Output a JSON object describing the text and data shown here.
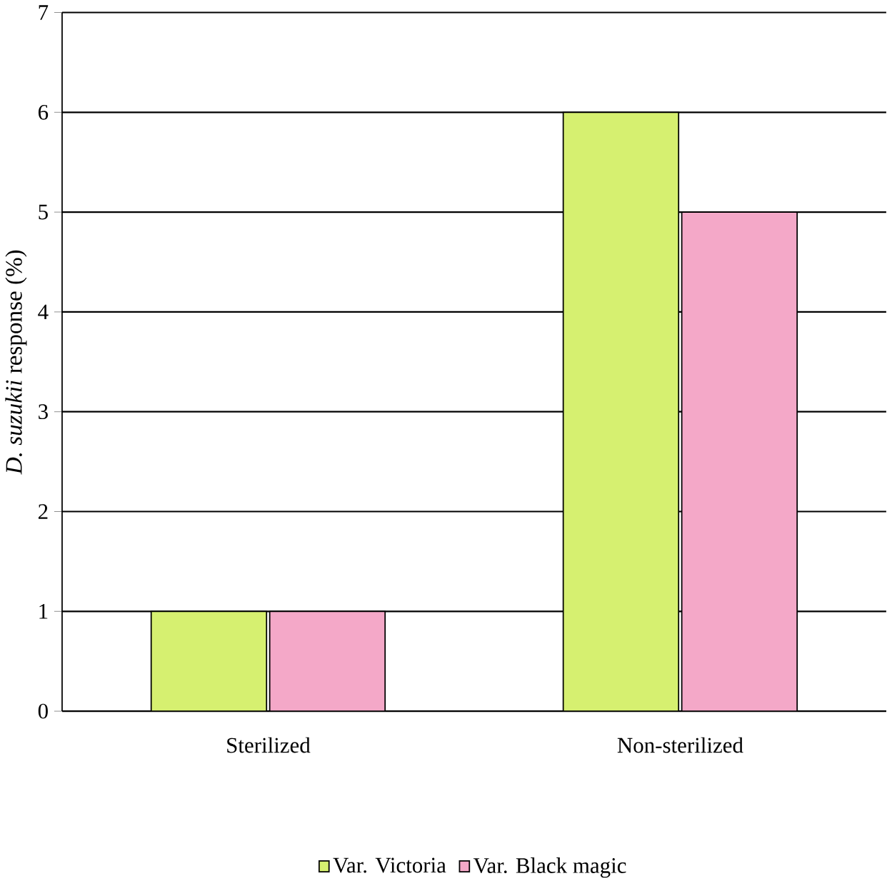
{
  "chart_data": {
    "type": "bar",
    "ylabel": "*D. suzukii* response (%)",
    "categories": [
      "Sterilized",
      "Non-sterilized"
    ],
    "series": [
      {
        "name": "Var. Victoria",
        "color": "#d6f070",
        "values": [
          1,
          6
        ]
      },
      {
        "name": "Var. Black magic",
        "color": "#f4a8c8",
        "values": [
          1,
          5
        ]
      }
    ],
    "ylim": [
      0,
      7
    ],
    "yticks": [
      0,
      1,
      2,
      3,
      4,
      5,
      6,
      7
    ],
    "grid": "y",
    "legend": "bottom"
  }
}
